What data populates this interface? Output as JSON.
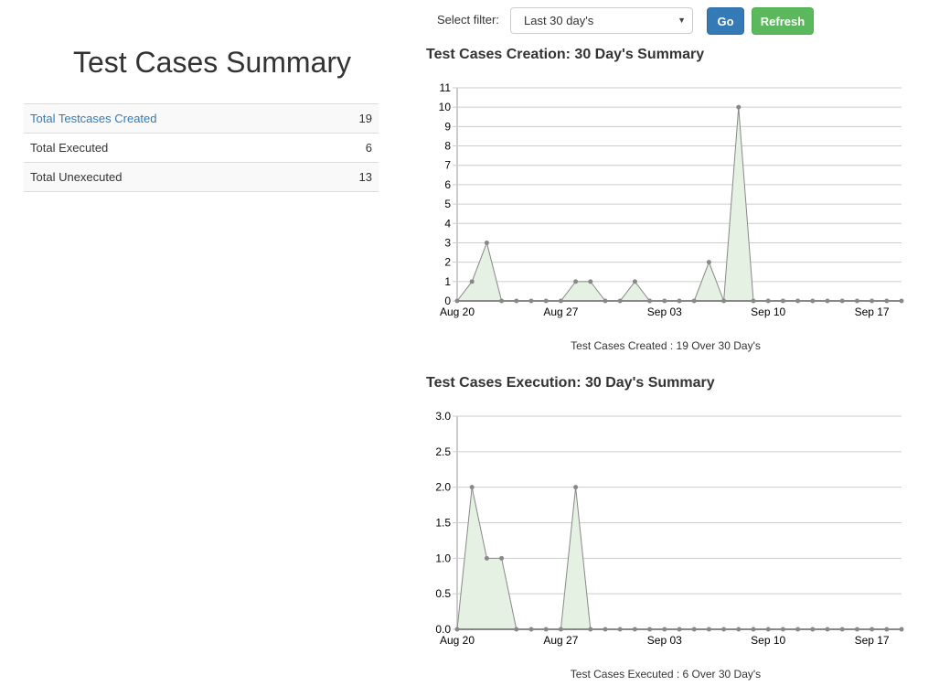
{
  "summary": {
    "title": "Test Cases Summary",
    "rows": [
      {
        "label": "Total Testcases Created",
        "value": "19",
        "link": true
      },
      {
        "label": "Total Executed",
        "value": "6"
      },
      {
        "label": "Total Unexecuted",
        "value": "13"
      }
    ]
  },
  "filter": {
    "label": "Select filter:",
    "selected": "Last 30 day's",
    "go": "Go",
    "refresh": "Refresh"
  },
  "colors": {
    "fill": "#e5f1e3",
    "line": "#888888",
    "go": "#337ab7",
    "refresh": "#5cb85c"
  },
  "chart_data": [
    {
      "type": "area",
      "title": "Test Cases Creation: 30 Day's Summary",
      "caption": "Test Cases Created : 19 Over 30 Day's",
      "x_start": "Aug 20",
      "x_end": "Sep 19",
      "xticks": [
        "Aug 20",
        "Aug 27",
        "Sep 03",
        "Sep 10",
        "Sep 17"
      ],
      "yticks": [
        "0",
        "1",
        "2",
        "3",
        "4",
        "5",
        "6",
        "7",
        "8",
        "9",
        "10",
        "11"
      ],
      "ylim": [
        0,
        11
      ],
      "grid": true,
      "values": [
        0,
        1,
        3,
        0,
        0,
        0,
        0,
        0,
        1,
        1,
        0,
        0,
        1,
        0,
        0,
        0,
        0,
        2,
        0,
        10,
        0,
        0,
        0,
        0,
        0,
        0,
        0,
        0,
        0,
        0,
        0
      ]
    },
    {
      "type": "area",
      "title": "Test Cases Execution: 30 Day's Summary",
      "caption": "Test Cases Executed : 6 Over 30 Day's",
      "x_start": "Aug 20",
      "x_end": "Sep 19",
      "xticks": [
        "Aug 20",
        "Aug 27",
        "Sep 03",
        "Sep 10",
        "Sep 17"
      ],
      "yticks": [
        "0.0",
        "0.5",
        "1.0",
        "1.5",
        "2.0",
        "2.5",
        "3.0"
      ],
      "ylim": [
        0,
        3
      ],
      "grid": true,
      "values": [
        0,
        2,
        1,
        1,
        0,
        0,
        0,
        0,
        2,
        0,
        0,
        0,
        0,
        0,
        0,
        0,
        0,
        0,
        0,
        0,
        0,
        0,
        0,
        0,
        0,
        0,
        0,
        0,
        0,
        0,
        0
      ]
    }
  ]
}
